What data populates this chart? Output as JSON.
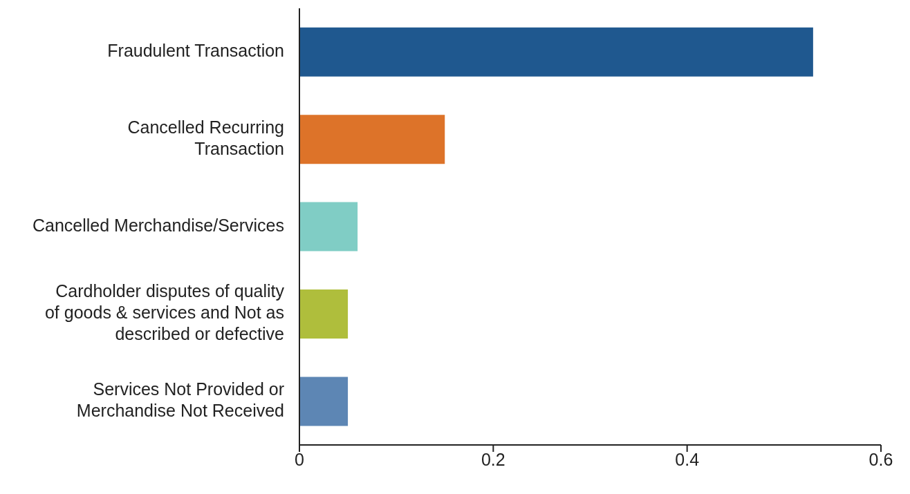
{
  "chart_data": {
    "type": "bar",
    "orientation": "horizontal",
    "categories": [
      "Fraudulent Transaction",
      "Cancelled Recurring Transaction",
      "Cancelled Merchandise/Services",
      "Cardholder disputes of quality of goods & services and Not as described or defective",
      "Services Not Provided or Merchandise Not Received"
    ],
    "values": [
      0.53,
      0.15,
      0.06,
      0.05,
      0.05
    ],
    "colors": [
      "#1f588f",
      "#dd7329",
      "#80cdc5",
      "#afbe3c",
      "#5d86b4"
    ],
    "xlim": [
      0,
      0.6
    ],
    "xticks": [
      0,
      0.2,
      0.4,
      0.6
    ],
    "grid": false
  }
}
